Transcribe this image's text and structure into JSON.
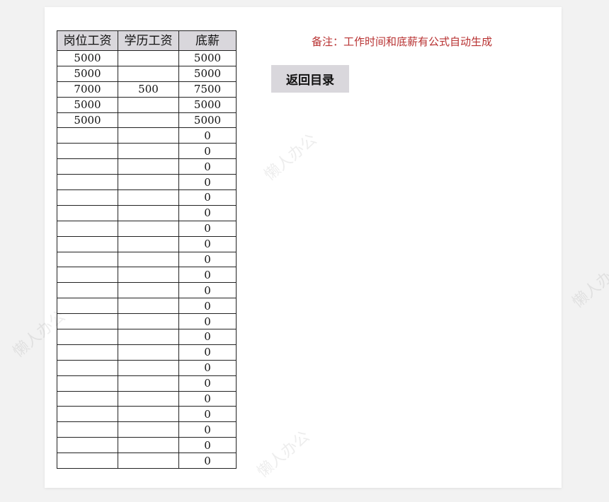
{
  "table": {
    "headers": [
      "岗位工资",
      "学历工资",
      "底薪"
    ],
    "rows": [
      [
        "5000",
        "",
        "5000"
      ],
      [
        "5000",
        "",
        "5000"
      ],
      [
        "7000",
        "500",
        "7500"
      ],
      [
        "5000",
        "",
        "5000"
      ],
      [
        "5000",
        "",
        "5000"
      ],
      [
        "",
        "",
        "0"
      ],
      [
        "",
        "",
        "0"
      ],
      [
        "",
        "",
        "0"
      ],
      [
        "",
        "",
        "0"
      ],
      [
        "",
        "",
        "0"
      ],
      [
        "",
        "",
        "0"
      ],
      [
        "",
        "",
        "0"
      ],
      [
        "",
        "",
        "0"
      ],
      [
        "",
        "",
        "0"
      ],
      [
        "",
        "",
        "0"
      ],
      [
        "",
        "",
        "0"
      ],
      [
        "",
        "",
        "0"
      ],
      [
        "",
        "",
        "0"
      ],
      [
        "",
        "",
        "0"
      ],
      [
        "",
        "",
        "0"
      ],
      [
        "",
        "",
        "0"
      ],
      [
        "",
        "",
        "0"
      ],
      [
        "",
        "",
        "0"
      ],
      [
        "",
        "",
        "0"
      ],
      [
        "",
        "",
        "0"
      ],
      [
        "",
        "",
        "0"
      ],
      [
        "",
        "",
        "0"
      ]
    ]
  },
  "note": "备注：工作时间和底薪有公式自动生成",
  "back_button": "返回目录",
  "watermark": "懒人办公",
  "colors": {
    "note": "#b83232",
    "header_bg": "#d9d7dc",
    "button_bg": "#d9d7dc"
  }
}
